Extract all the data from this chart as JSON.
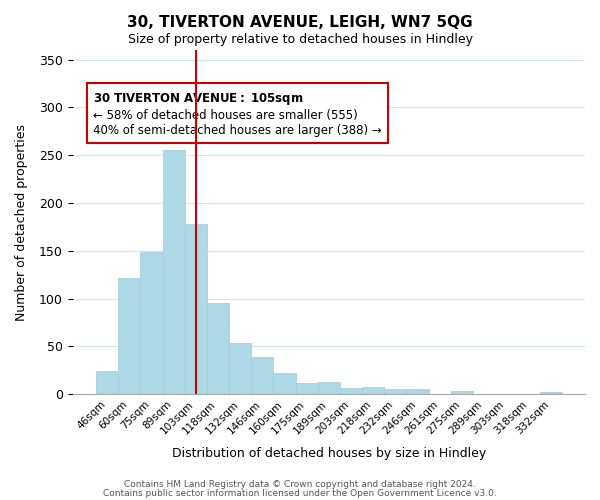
{
  "title": "30, TIVERTON AVENUE, LEIGH, WN7 5QG",
  "subtitle": "Size of property relative to detached houses in Hindley",
  "xlabel": "Distribution of detached houses by size in Hindley",
  "ylabel": "Number of detached properties",
  "bar_labels": [
    "46sqm",
    "60sqm",
    "75sqm",
    "89sqm",
    "103sqm",
    "118sqm",
    "132sqm",
    "146sqm",
    "160sqm",
    "175sqm",
    "189sqm",
    "203sqm",
    "218sqm",
    "232sqm",
    "246sqm",
    "261sqm",
    "275sqm",
    "289sqm",
    "303sqm",
    "318sqm",
    "332sqm"
  ],
  "bar_values": [
    24,
    122,
    149,
    255,
    178,
    95,
    54,
    39,
    22,
    12,
    13,
    6,
    7,
    5,
    5,
    0,
    3,
    0,
    0,
    0,
    2
  ],
  "bar_color": "#add8e6",
  "bar_edge_color": "#add8e6",
  "vline_x_index": 4,
  "vline_color": "#cc0000",
  "ylim": [
    0,
    360
  ],
  "yticks": [
    0,
    50,
    100,
    150,
    200,
    250,
    300,
    350
  ],
  "annotation_title": "30 TIVERTON AVENUE: 105sqm",
  "annotation_line1": "← 58% of detached houses are smaller (555)",
  "annotation_line2": "40% of semi-detached houses are larger (388) →",
  "annotation_box_color": "#ffffff",
  "annotation_box_edge": "#cc0000",
  "footer1": "Contains HM Land Registry data © Crown copyright and database right 2024.",
  "footer2": "Contains public sector information licensed under the Open Government Licence v3.0.",
  "background_color": "#ffffff",
  "grid_color": "#d0e8f0"
}
